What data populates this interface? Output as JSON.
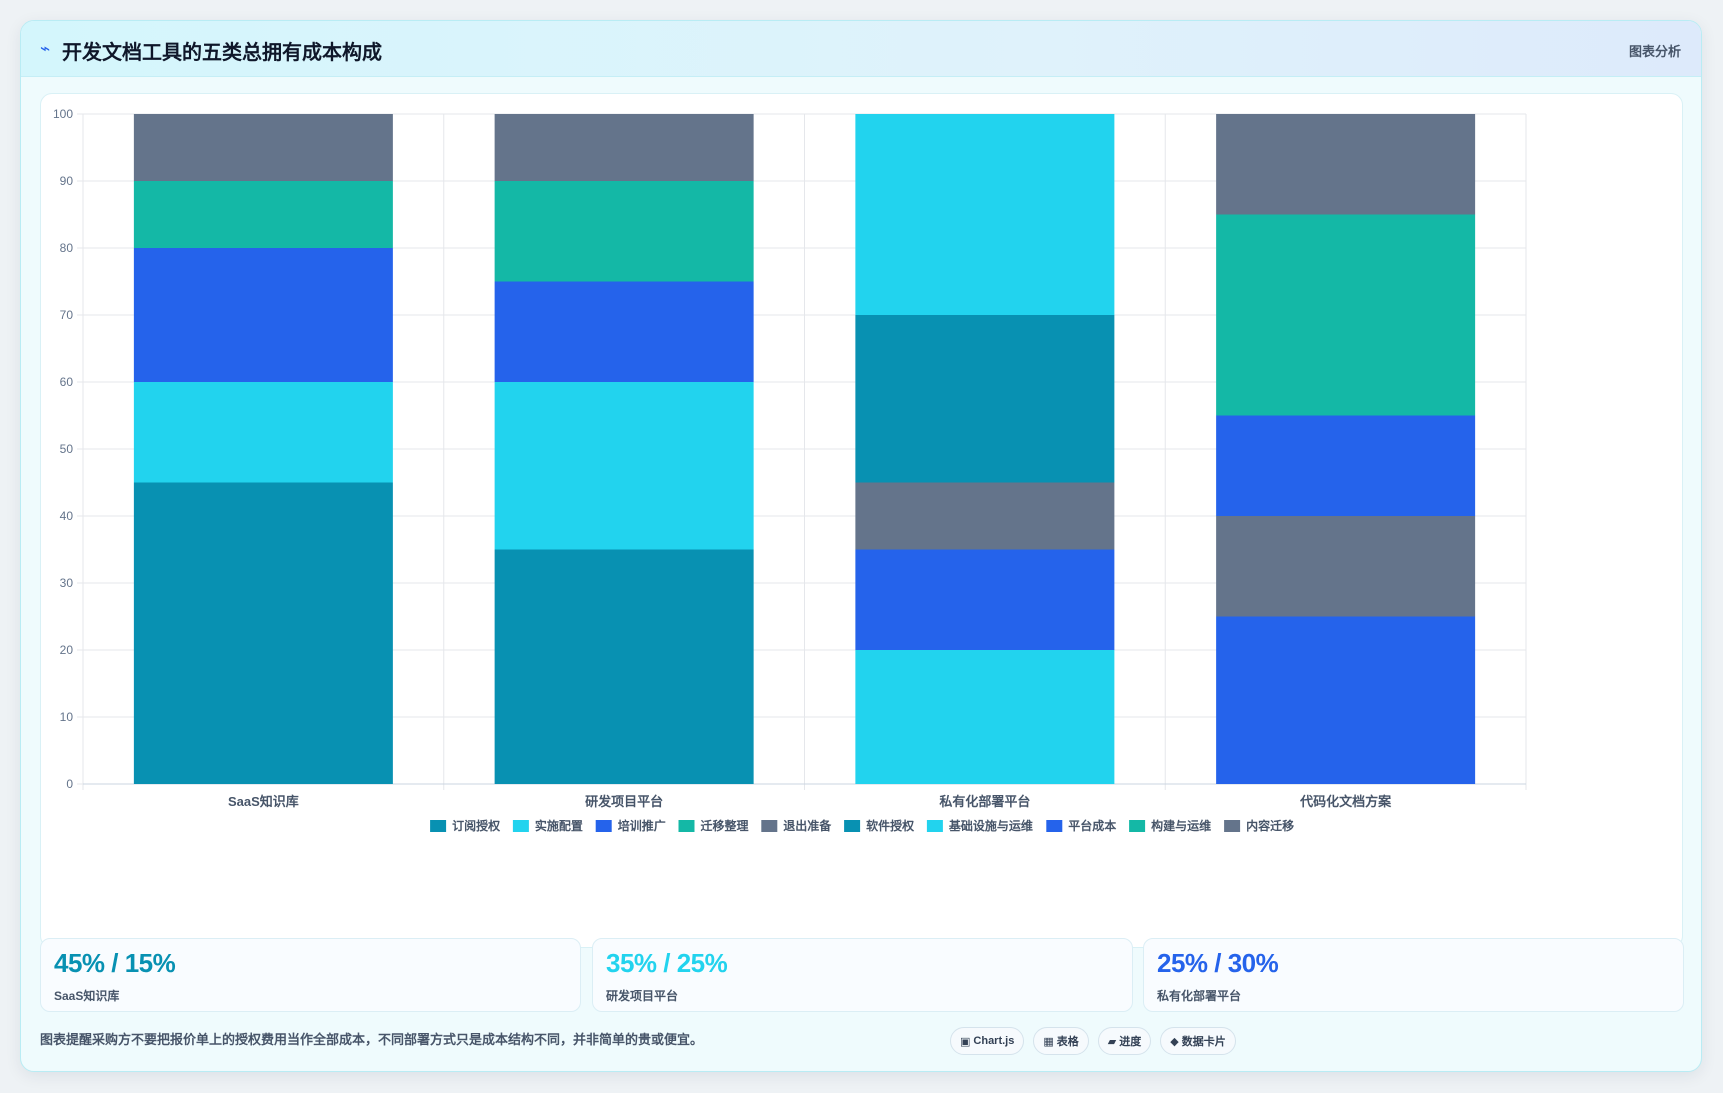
{
  "header": {
    "icon": "trend-icon",
    "title": "开发文档工具的五类总拥有成本构成",
    "action_label": "图表分析"
  },
  "chart_data": {
    "type": "bar",
    "stacked": true,
    "categories": [
      "SaaS知识库",
      "研发项目平台",
      "私有化部署平台",
      "代码化文档方案"
    ],
    "ylim": [
      0,
      100
    ],
    "yticks": [
      0,
      10,
      20,
      30,
      40,
      50,
      60,
      70,
      80,
      90,
      100
    ],
    "grid": true,
    "legend_position": "bottom",
    "legend": [
      {
        "label": "订阅授权",
        "color": "#0891b2"
      },
      {
        "label": "实施配置",
        "color": "#22d3ee"
      },
      {
        "label": "培训推广",
        "color": "#2563eb"
      },
      {
        "label": "迁移整理",
        "color": "#14b8a6"
      },
      {
        "label": "退出准备",
        "color": "#64748b"
      },
      {
        "label": "软件授权",
        "color": "#0891b2"
      },
      {
        "label": "基础设施与运维",
        "color": "#22d3ee"
      },
      {
        "label": "平台成本",
        "color": "#2563eb"
      },
      {
        "label": "构建与运维",
        "color": "#14b8a6"
      },
      {
        "label": "内容迁移",
        "color": "#64748b"
      }
    ],
    "series": [
      {
        "name": "订阅授权",
        "color": "#0891b2",
        "values": [
          45,
          35,
          0,
          0
        ]
      },
      {
        "name": "实施配置",
        "color": "#22d3ee",
        "values": [
          15,
          25,
          0,
          0
        ]
      },
      {
        "name": "培训推广",
        "color": "#2563eb",
        "values": [
          20,
          15,
          0,
          0
        ]
      },
      {
        "name": "迁移整理",
        "color": "#14b8a6",
        "values": [
          10,
          15,
          0,
          0
        ]
      },
      {
        "name": "退出准备",
        "color": "#64748b",
        "values": [
          10,
          10,
          0,
          0
        ]
      },
      {
        "name": "基础设施与运维",
        "color": "#22d3ee",
        "values": [
          0,
          0,
          20,
          0
        ]
      },
      {
        "name": "平台成本",
        "color": "#2563eb",
        "values": [
          0,
          0,
          15,
          25
        ]
      },
      {
        "name": "内容迁移",
        "color": "#64748b",
        "values": [
          0,
          0,
          10,
          15
        ]
      },
      {
        "name": "软件授权",
        "color": "#0891b2",
        "values": [
          0,
          0,
          25,
          0
        ]
      },
      {
        "name": "基础设施与运维",
        "color": "#22d3ee",
        "values": [
          0,
          0,
          30,
          0
        ]
      },
      {
        "name": "平台成本",
        "color": "#2563eb",
        "values": [
          0,
          0,
          0,
          15
        ]
      },
      {
        "name": "构建与运维",
        "color": "#14b8a6",
        "values": [
          0,
          0,
          0,
          30
        ]
      },
      {
        "name": "内容迁移",
        "color": "#64748b",
        "values": [
          0,
          0,
          0,
          15
        ]
      }
    ]
  },
  "stats": [
    {
      "value": "45% / 15%",
      "label": "SaaS知识库",
      "color": "#0891b2"
    },
    {
      "value": "35% / 25%",
      "label": "研发项目平台",
      "color": "#22d3ee"
    },
    {
      "value": "25% / 30%",
      "label": "私有化部署平台",
      "color": "#2563eb"
    }
  ],
  "note": "图表提醒采购方不要把报价单上的授权费用当作全部成本，不同部署方式只是成本结构不同，并非简单的贵或便宜。",
  "pills": [
    {
      "icon": "▣",
      "icon_name": "chart-icon",
      "label": "Chart.js"
    },
    {
      "icon": "▦",
      "icon_name": "table-icon",
      "label": "表格"
    },
    {
      "icon": "▰",
      "icon_name": "progress-icon",
      "label": "进度"
    },
    {
      "icon": "◆",
      "icon_name": "diamond-icon",
      "label": "数据卡片"
    }
  ]
}
